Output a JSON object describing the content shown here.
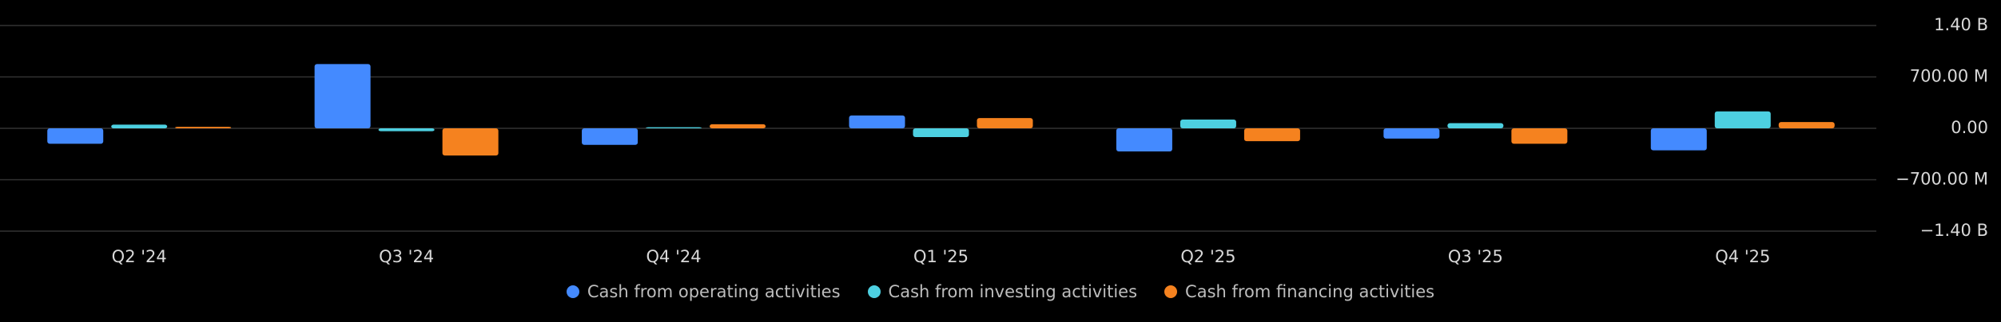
{
  "chart_data": {
    "type": "bar",
    "categories": [
      "Q2 '24",
      "Q3 '24",
      "Q4 '24",
      "Q1 '25",
      "Q2 '25",
      "Q3 '25",
      "Q4 '25"
    ],
    "series": [
      {
        "name": "Cash from operating activities",
        "color": "#448aff",
        "values": [
          -210000000,
          875000000,
          -225000000,
          175000000,
          -315000000,
          -140000000,
          -300000000
        ]
      },
      {
        "name": "Cash from investing activities",
        "color": "#4dd0e1",
        "values": [
          50000000,
          -40000000,
          15000000,
          -120000000,
          120000000,
          70000000,
          230000000
        ]
      },
      {
        "name": "Cash from financing activities",
        "color": "#f5821f",
        "values": [
          20000000,
          -370000000,
          55000000,
          140000000,
          -175000000,
          -210000000,
          85000000
        ]
      }
    ],
    "ylim": [
      -1400000000,
      1400000000
    ],
    "yticks": [
      {
        "value": -1400000000,
        "label": "−1.40 B"
      },
      {
        "value": -700000000,
        "label": "−700.00 M"
      },
      {
        "value": 0,
        "label": "0.00"
      },
      {
        "value": 700000000,
        "label": "700.00 M"
      },
      {
        "value": 1400000000,
        "label": "1.40 B"
      }
    ],
    "grid": true
  }
}
